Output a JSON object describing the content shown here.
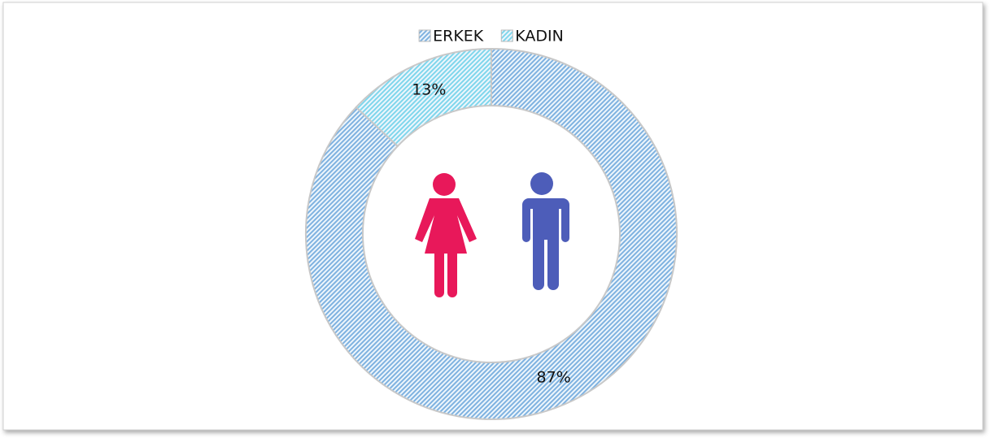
{
  "chart_data": {
    "type": "pie",
    "donut": true,
    "categories": [
      "ERKEK",
      "KADIN"
    ],
    "values": [
      87,
      13
    ],
    "value_labels": [
      "87%",
      "13%"
    ],
    "colors": [
      "#7fb2e0",
      "#7fd6ec"
    ],
    "legend": "top"
  }
}
